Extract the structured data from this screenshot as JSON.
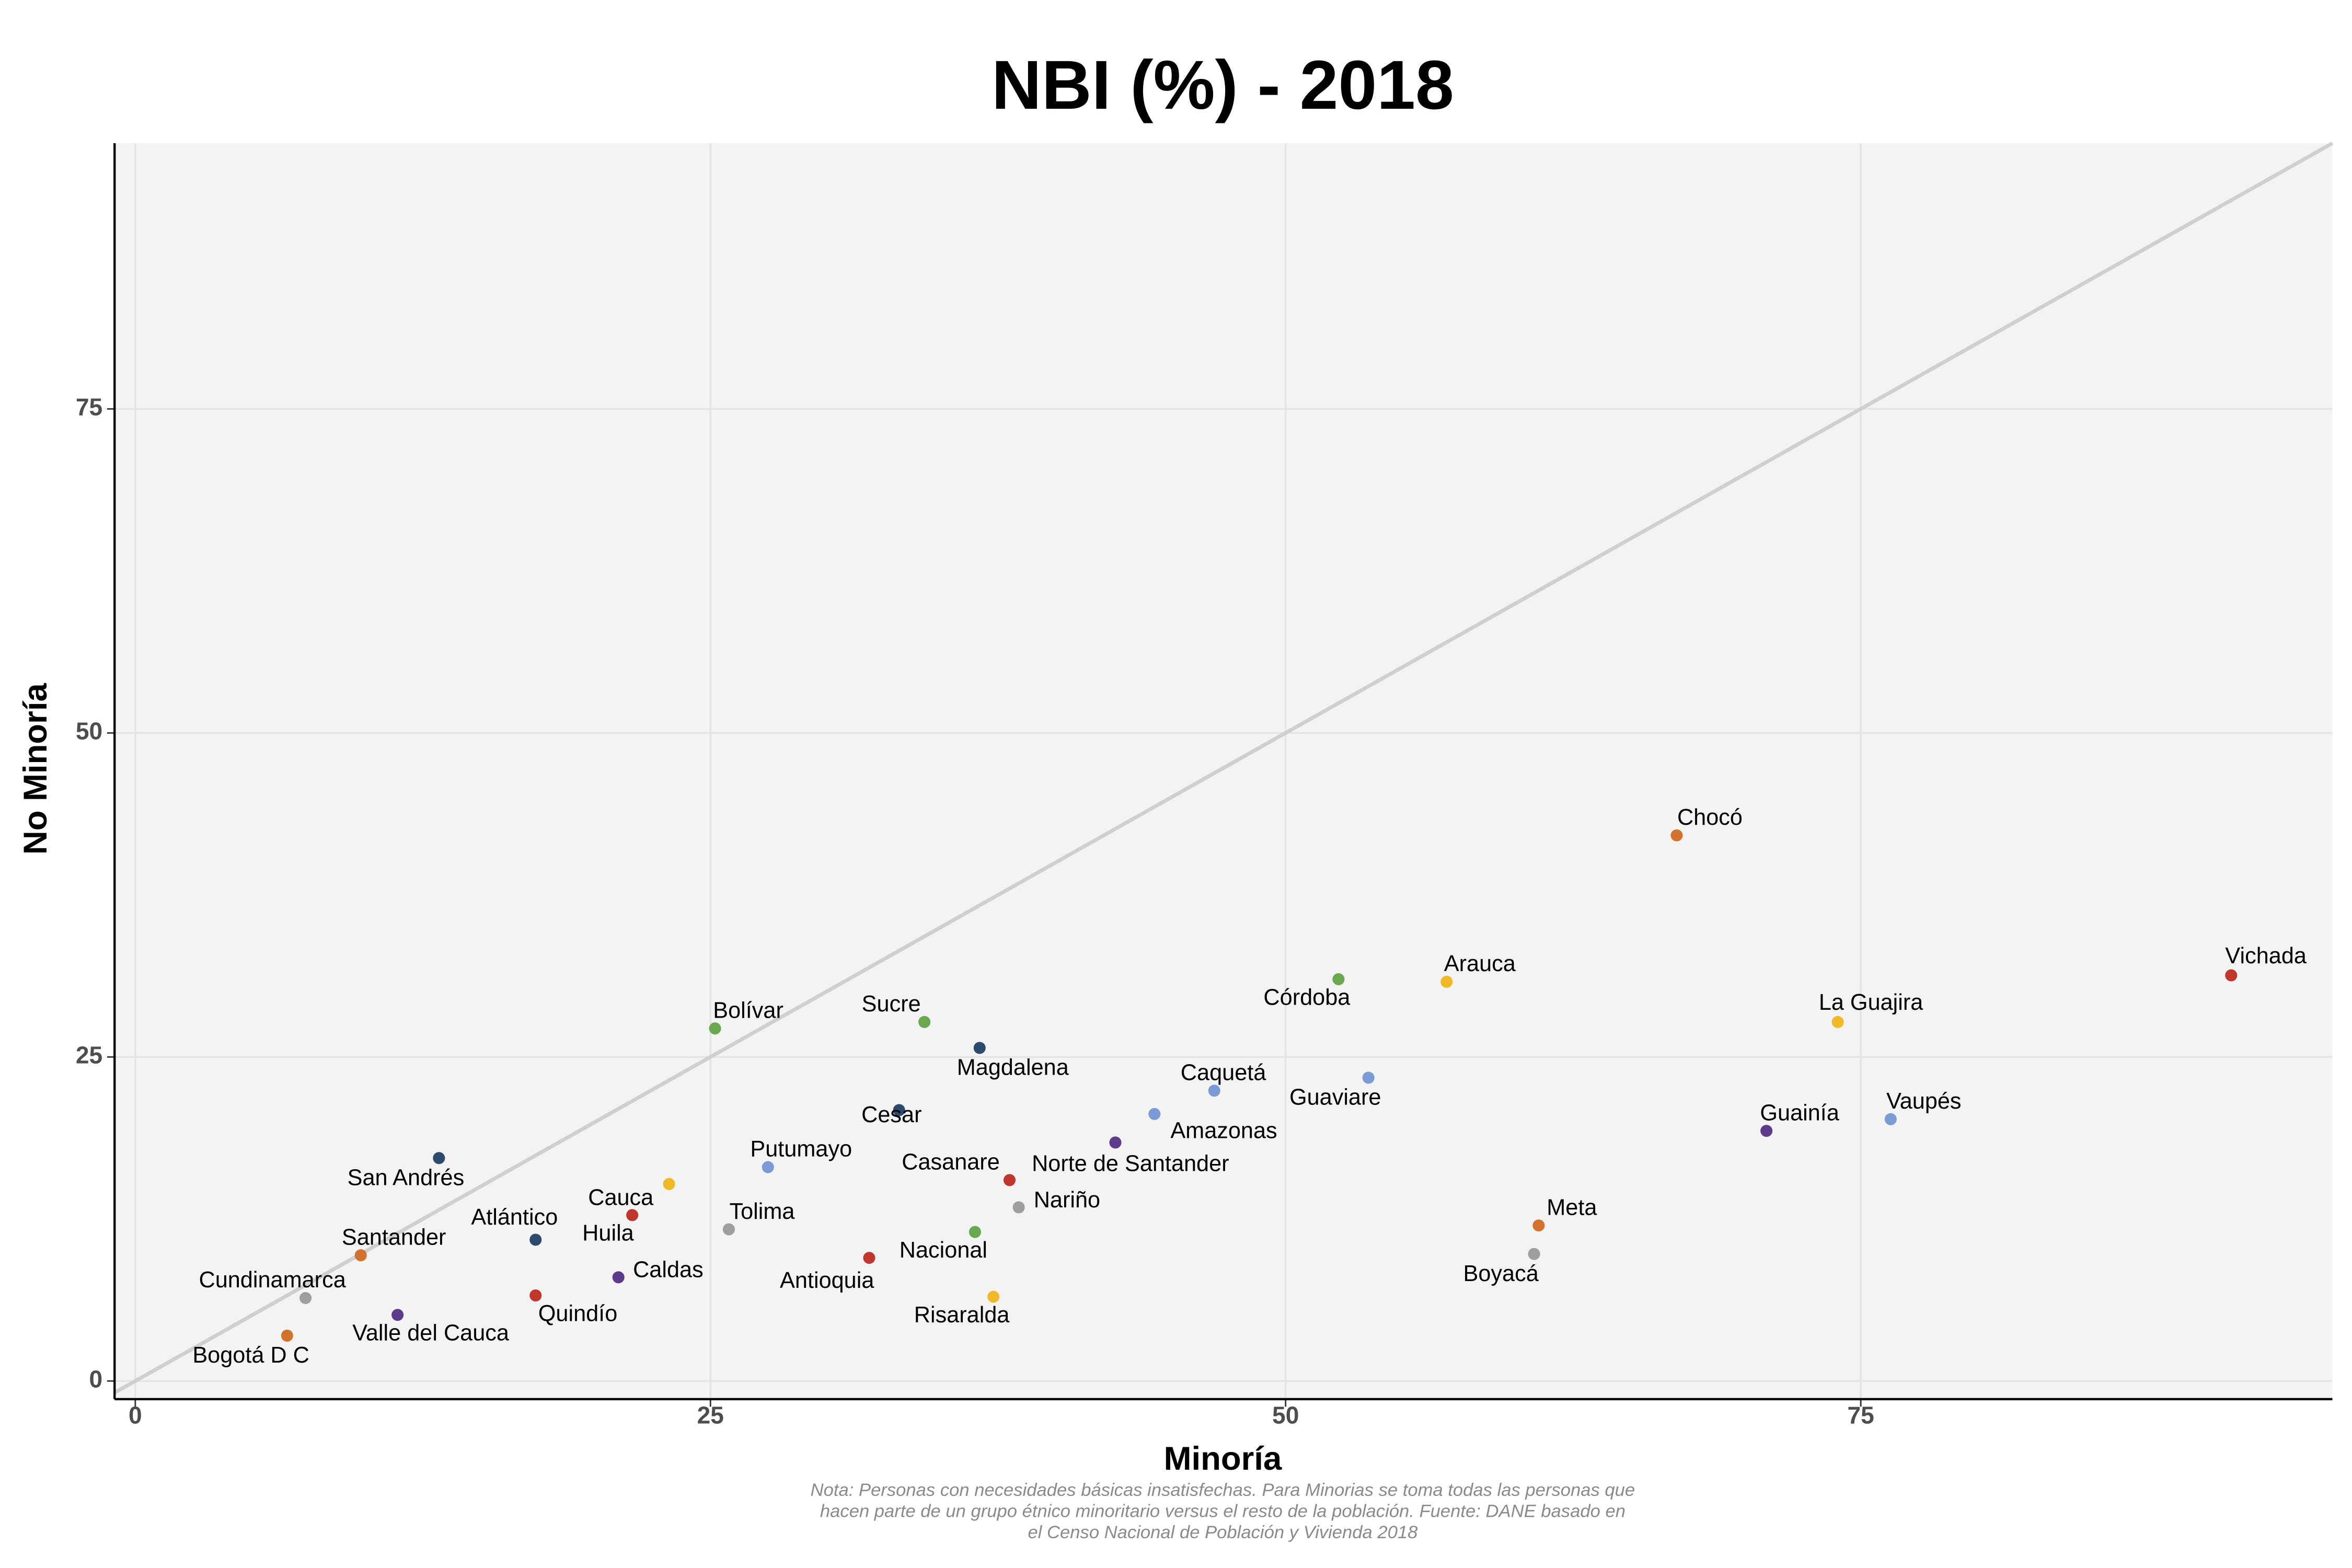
{
  "chart_data": {
    "type": "scatter",
    "title": "NBI (%) - 2018",
    "x_label": "Minoría",
    "y_label": "No Minoría",
    "caption": [
      "Nota: Personas con necesidades básicas insatisfechas. Para Minorias se toma todas las personas que",
      "hacen parte de un grupo étnico minoritario versus el resto de la población. Fuente: DANE basado en",
      "el Censo Nacional de Población y Vivienda 2018"
    ],
    "labels": [
      "Vichada",
      "Chocó",
      "La Guajira",
      "Arauca",
      "Córdoba",
      "Guaviare",
      "Vaupés",
      "Guainía",
      "Meta",
      "Boyacá",
      "Caquetá",
      "Amazonas",
      "Norte de Santander",
      "Casanare",
      "Nariño",
      "Magdalena",
      "Sucre",
      "Cesar",
      "Nacional",
      "Antioquia",
      "Risaralda",
      "Bolívar",
      "Putumayo",
      "Tolima",
      "Cauca",
      "Huila",
      "Caldas",
      "Atlántico",
      "Quindío",
      "San Andrés",
      "Santander",
      "Cundinamarca",
      "Valle del Cauca",
      "Bogotá D C"
    ],
    "x": [
      91.1,
      67.0,
      74.0,
      57.0,
      52.3,
      53.6,
      76.3,
      70.9,
      61.0,
      60.8,
      46.9,
      44.3,
      42.6,
      38.0,
      38.4,
      36.7,
      34.3,
      33.2,
      36.5,
      31.9,
      37.3,
      25.2,
      27.5,
      25.8,
      23.2,
      21.6,
      21.0,
      17.4,
      17.4,
      13.2,
      9.8,
      7.4,
      11.4,
      6.6
    ],
    "values": [
      31.3,
      42.1,
      27.7,
      30.8,
      31.0,
      23.4,
      20.2,
      19.3,
      12.0,
      9.8,
      22.4,
      20.6,
      18.4,
      15.5,
      13.4,
      25.7,
      27.7,
      20.9,
      11.5,
      9.5,
      6.5,
      27.2,
      16.5,
      11.7,
      15.2,
      12.8,
      8.0,
      10.9,
      6.6,
      17.2,
      9.7,
      6.4,
      5.1,
      3.5
    ],
    "colors": [
      "#c0362c",
      "#d2722f",
      "#f0b928",
      "#f0b928",
      "#6aa84f",
      "#7b9bd6",
      "#7b9bd6",
      "#5e3a8c",
      "#d2722f",
      "#9e9e9e",
      "#7b9bd6",
      "#7b9bd6",
      "#5e3a8c",
      "#c0362c",
      "#9e9e9e",
      "#2c4a6b",
      "#6aa84f",
      "#2c4a6b",
      "#6aa84f",
      "#c0362c",
      "#f0b928",
      "#6aa84f",
      "#7b9bd6",
      "#9e9e9e",
      "#f0b928",
      "#c0362c",
      "#5e3a8c",
      "#2c4a6b",
      "#c0362c",
      "#2c4a6b",
      "#d2722f",
      "#9e9e9e",
      "#5e3a8c",
      "#d2722f"
    ],
    "xlim": [
      -0.9,
      95.5
    ],
    "ylim": [
      -1.4,
      95.5
    ],
    "xticks": [
      0,
      25,
      50,
      75
    ],
    "yticks": [
      0,
      25,
      50,
      75
    ],
    "grid": true
  }
}
